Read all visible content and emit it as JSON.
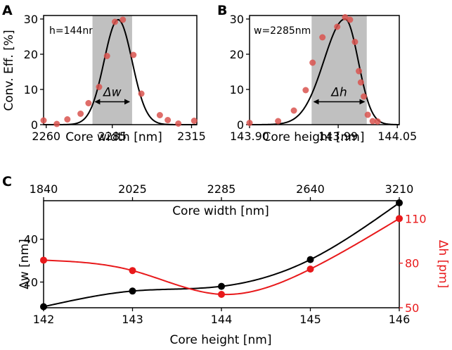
{
  "colors": {
    "curve": "#000000",
    "dot_red": "#d9534f",
    "band": "#c0c0c0",
    "red": "#e8191b",
    "black": "#000000"
  },
  "chart_data": [
    {
      "id": "A",
      "type": "scatter",
      "panel_label": "A",
      "annotation": "h=144nm",
      "band_label": "Δw",
      "xlabel": "Core width [nm]",
      "ylabel": "Conv. Eff. [%]",
      "xlim": [
        2259,
        2317
      ],
      "ylim": [
        0,
        31
      ],
      "xticks": [
        2260,
        2285,
        2315
      ],
      "xtick_labels": [
        "2260",
        "2285",
        "2315"
      ],
      "yticks": [
        0,
        10,
        20,
        30
      ],
      "ytick_labels": [
        "0",
        "10",
        "20",
        "30"
      ],
      "band": [
        2277.5,
        2292.5
      ],
      "arrow": [
        2278,
        2292,
        6.5
      ],
      "points": {
        "x": [
          2259,
          2264,
          2268,
          2273,
          2276,
          2280,
          2283,
          2286,
          2289,
          2293,
          2296,
          2303,
          2306,
          2310,
          2316
        ],
        "y": [
          1.2,
          0.2,
          1.5,
          3.1,
          6.1,
          10.7,
          19.5,
          29.2,
          29.8,
          19.8,
          8.8,
          2.7,
          1.3,
          0.3,
          1.1
        ]
      },
      "curve": {
        "type": "gaussian",
        "amp": 29.8,
        "mu": 2287.2,
        "sigma": 5.3
      }
    },
    {
      "id": "B",
      "type": "scatter",
      "panel_label": "B",
      "annotation": "w=2285nm",
      "band_label": "Δh",
      "xlabel": "Core height [nm]",
      "ylabel": "",
      "xlim": [
        143.9,
        144.052
      ],
      "ylim": [
        0,
        31
      ],
      "xticks": [
        143.9,
        143.99,
        144.05
      ],
      "xtick_labels": [
        "143.90",
        "143.99",
        "144.05"
      ],
      "yticks": [
        0,
        10,
        20,
        30
      ],
      "ytick_labels": [
        "0",
        "10",
        "20",
        "30"
      ],
      "band": [
        143.963,
        144.019
      ],
      "arrow": [
        143.964,
        144.018,
        6.5
      ],
      "points": {
        "x": [
          143.9,
          143.929,
          143.945,
          143.957,
          143.964,
          143.974,
          143.989,
          143.997,
          144.002,
          144.007,
          144.011,
          144.013,
          144.016,
          144.02,
          144.025,
          144.03
        ],
        "y": [
          0.5,
          1.0,
          4.0,
          9.8,
          17.6,
          24.8,
          27.8,
          30.5,
          29.8,
          23.5,
          15.2,
          12.0,
          8.0,
          2.8,
          1.0,
          0.9
        ]
      },
      "curve": {
        "type": "asym",
        "amp": 30,
        "mu": 143.997,
        "sigmaL": 0.0215,
        "sigmaR": 0.0133,
        "plateau": 1.5
      }
    },
    {
      "id": "C",
      "type": "line",
      "panel_label": "C",
      "title": "Core width [nm]",
      "xlabel": "Core height [nm]",
      "ylabel": "Δw [nm]",
      "y2label": "Δh [pm]",
      "xlim": [
        142,
        146
      ],
      "ylim": [
        8,
        58
      ],
      "y2lim": [
        50,
        122
      ],
      "xticks": [
        142,
        143,
        144,
        145,
        146
      ],
      "xtick_labels": [
        "142",
        "143",
        "144",
        "145",
        "146"
      ],
      "top_xtick_labels": [
        "1840",
        "2025",
        "2285",
        "2640",
        "3210"
      ],
      "yticks": [
        20,
        40
      ],
      "ytick_labels": [
        "20",
        "40"
      ],
      "y2ticks": [
        50,
        80,
        110
      ],
      "y2tick_labels": [
        "50",
        "80",
        "110"
      ],
      "series": [
        {
          "name": "Δw",
          "axis": "left",
          "color": "#000000",
          "x": [
            142,
            143,
            144,
            145,
            146
          ],
          "values": [
            8.5,
            15.8,
            18.0,
            30.5,
            57.0
          ]
        },
        {
          "name": "Δh",
          "axis": "right",
          "color": "#e8191b",
          "x": [
            142,
            143,
            144,
            145,
            146
          ],
          "values": [
            82,
            75,
            59,
            76,
            110
          ]
        }
      ]
    }
  ]
}
